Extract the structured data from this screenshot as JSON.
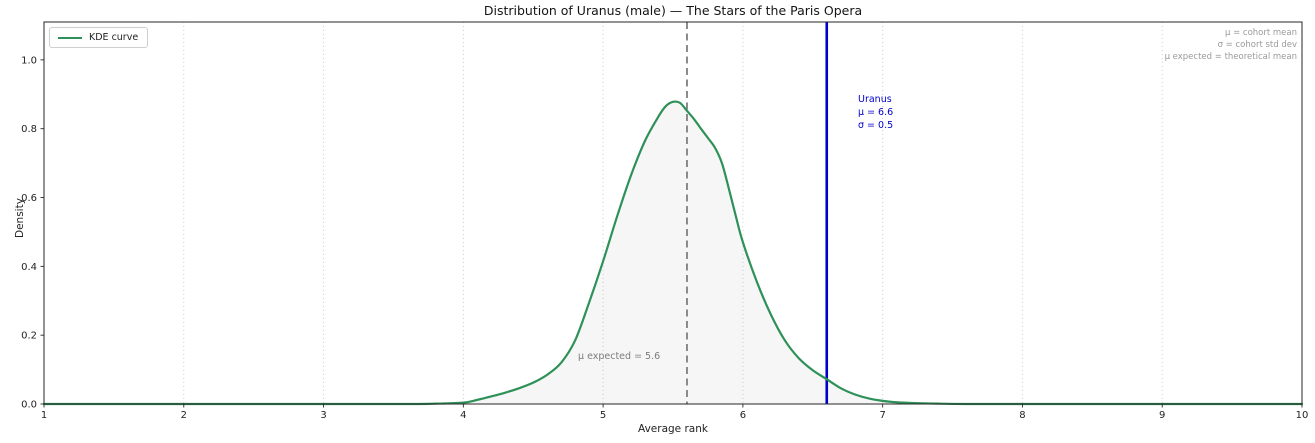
{
  "title": "Distribution of Uranus (male) — The Stars of the Paris Opera",
  "axes": {
    "xlabel": "Average rank",
    "ylabel": "Density",
    "x_ticks": [
      1,
      2,
      3,
      4,
      5,
      6,
      7,
      8,
      9,
      10
    ],
    "y_ticks": [
      "0.0",
      "0.2",
      "0.4",
      "0.6",
      "0.8",
      "1.0"
    ],
    "y_tick_values": [
      0.0,
      0.2,
      0.4,
      0.6,
      0.8,
      1.0
    ]
  },
  "legend": {
    "items": [
      {
        "label": "KDE curve",
        "color": "#2e9158"
      }
    ]
  },
  "annotations": {
    "top_right_lines": [
      "μ = cohort mean",
      "σ = cohort std dev",
      "μ expected = theoretical mean"
    ],
    "subject_label_lines": [
      "Uranus",
      "μ = 6.6",
      "σ = 0.5"
    ],
    "expected_label": "μ expected = 5.6"
  },
  "colors": {
    "curve": "#2e9158",
    "fill": "rgba(128,128,128,0.07)",
    "mean_line": "#0000cd",
    "expected_line": "#7f7f7f",
    "grid": "#c9c9c9",
    "spine": "#262626",
    "tick_label": "#222222"
  },
  "chart_data": {
    "type": "area",
    "title": "Distribution of Uranus (male) — The Stars of the Paris Opera",
    "xlabel": "Average rank",
    "ylabel": "Density",
    "xlim": [
      1,
      10
    ],
    "ylim": [
      0,
      1.11
    ],
    "grid": "vertical dotted lines at integer x",
    "legend_position": "upper left",
    "series": [
      {
        "name": "KDE curve",
        "color": "#2e9158",
        "x": [
          1.0,
          2.0,
          3.0,
          3.6,
          3.8,
          4.0,
          4.1,
          4.2,
          4.3,
          4.4,
          4.5,
          4.6,
          4.7,
          4.8,
          4.9,
          5.0,
          5.1,
          5.2,
          5.3,
          5.4,
          5.45,
          5.5,
          5.55,
          5.6,
          5.65,
          5.7,
          5.75,
          5.8,
          5.85,
          5.9,
          5.95,
          6.0,
          6.1,
          6.2,
          6.3,
          6.4,
          6.5,
          6.6,
          6.7,
          6.8,
          6.9,
          7.0,
          7.1,
          7.2,
          7.4,
          7.6,
          8.0,
          9.0,
          10.0
        ],
        "y": [
          0,
          0,
          0,
          0,
          0.001,
          0.004,
          0.012,
          0.022,
          0.033,
          0.046,
          0.062,
          0.085,
          0.12,
          0.185,
          0.295,
          0.415,
          0.545,
          0.665,
          0.765,
          0.838,
          0.866,
          0.878,
          0.875,
          0.852,
          0.828,
          0.8,
          0.773,
          0.745,
          0.7,
          0.625,
          0.545,
          0.47,
          0.355,
          0.26,
          0.185,
          0.133,
          0.098,
          0.072,
          0.046,
          0.028,
          0.016,
          0.009,
          0.005,
          0.003,
          0.001,
          0,
          0,
          0,
          0
        ]
      }
    ],
    "peak": {
      "x": 5.5,
      "density": 0.88
    },
    "vlines": [
      {
        "name": "cohort-mean",
        "x": 6.6,
        "color": "#0000cd",
        "style": "solid",
        "label": "Uranus μ = 6.6 σ = 0.5"
      },
      {
        "name": "expected-mean",
        "x": 5.6,
        "color": "#7f7f7f",
        "style": "dashed",
        "label": "μ expected = 5.6"
      }
    ],
    "stats": {
      "mu": 6.6,
      "sigma": 0.5,
      "mu_expected": 5.6
    }
  }
}
